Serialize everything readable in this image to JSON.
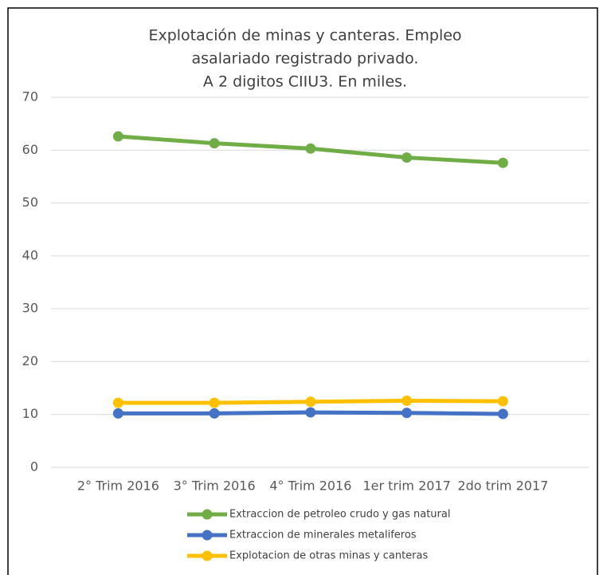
{
  "chart_data": {
    "type": "line",
    "title": [
      "Explotación  de  minas  y  canteras. Empleo",
      "asalariado registrado privado.",
      "A 2 digitos CIIU3. En miles."
    ],
    "categories": [
      "2° Trim 2016",
      "3° Trim 2016",
      "4° Trim 2016",
      "1er trim 2017",
      "2do trim 2017"
    ],
    "series": [
      {
        "name": "Extraccion de petroleo crudo y gas natural",
        "color": "#70ad47",
        "values": [
          62.6,
          61.3,
          60.3,
          58.6,
          57.6
        ]
      },
      {
        "name": "Extraccion de minerales metaliferos",
        "color": "#4472c4",
        "values": [
          10.2,
          10.2,
          10.4,
          10.3,
          10.1
        ]
      },
      {
        "name": "Explotacion de otras minas y canteras",
        "color": "#ffc000",
        "values": [
          12.2,
          12.2,
          12.4,
          12.6,
          12.5
        ]
      }
    ],
    "ylim": [
      0,
      70
    ],
    "yticks": [
      0,
      10,
      20,
      30,
      40,
      50,
      60,
      70
    ],
    "grid": true,
    "legend": "bottom"
  }
}
